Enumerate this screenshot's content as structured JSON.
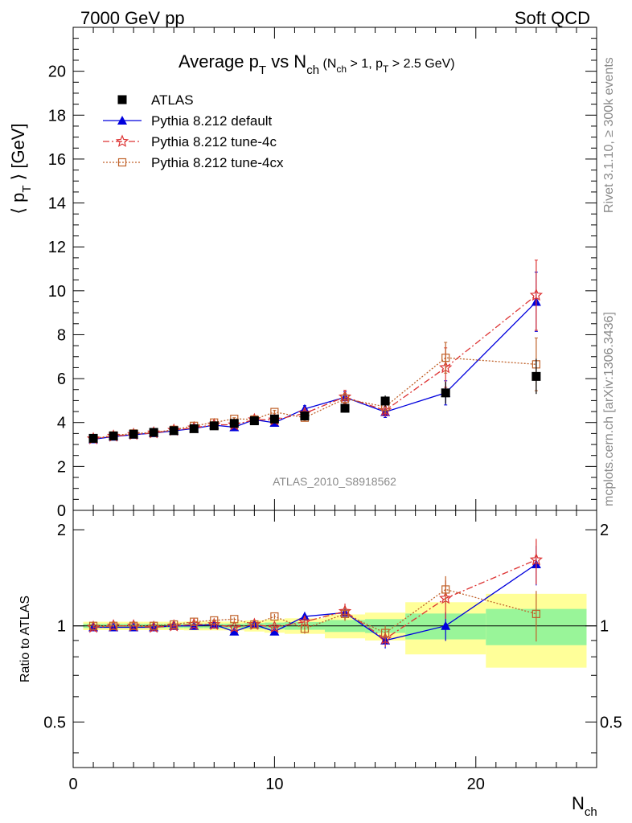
{
  "header": {
    "left": "7000 GeV pp",
    "right": "Soft QCD"
  },
  "title": {
    "main": "Average p",
    "main_sub": "T",
    "vs": " vs N",
    "vs_sub": "ch",
    "cond1": " (N",
    "cond1_sub": "ch",
    "cond2": " > 1, p",
    "cond2_sub": "T",
    "cond3": " > 2.5 GeV)"
  },
  "ylabel_top": {
    "prefix": "⟨ p",
    "sub": "T",
    "suffix": " ⟩ [GeV]"
  },
  "ylabel_bottom": "Ratio to ATLAS",
  "xlabel": {
    "main": "N",
    "sub": "ch"
  },
  "side_text": {
    "rivet": "Rivet 3.1.10, ≥ 300k events",
    "mcplots": "mcplots.cern.ch [arXiv:1306.3436]"
  },
  "watermark": "ATLAS_2010_S8918562",
  "colors": {
    "data": "#000000",
    "default": "#0000dd",
    "tune4c": "#dd3333",
    "tune4cx": "#c0622a",
    "band_green": "#99f599",
    "band_yellow": "#ffff99"
  },
  "chart_data": {
    "type": "line",
    "x_range": [
      0,
      26
    ],
    "x_ticks": [
      0,
      10,
      20
    ],
    "top_panel": {
      "ylim": [
        0,
        22
      ],
      "y_ticks": [
        0,
        2,
        4,
        6,
        8,
        10,
        12,
        14,
        16,
        18,
        20
      ]
    },
    "ratio_panel": {
      "scale": "log",
      "ylim": [
        0.36,
        2.3
      ],
      "y_ticks": [
        0.5,
        1,
        2
      ],
      "y_tick_labels": [
        "0.5",
        "1",
        "2"
      ]
    },
    "x": [
      1,
      2,
      3,
      4,
      5,
      6,
      7,
      8,
      9,
      10,
      11.5,
      13.5,
      15.5,
      18.5,
      23
    ],
    "x_bins": [
      [
        0.5,
        1.5
      ],
      [
        1.5,
        2.5
      ],
      [
        2.5,
        3.5
      ],
      [
        3.5,
        4.5
      ],
      [
        4.5,
        5.5
      ],
      [
        5.5,
        6.5
      ],
      [
        6.5,
        7.5
      ],
      [
        7.5,
        8.5
      ],
      [
        8.5,
        9.5
      ],
      [
        9.5,
        10.5
      ],
      [
        10.5,
        12.5
      ],
      [
        12.5,
        14.5
      ],
      [
        14.5,
        16.5
      ],
      [
        16.5,
        20.5
      ],
      [
        20.5,
        25.5
      ]
    ],
    "legend": [
      "ATLAS",
      "Pythia 8.212 default",
      "Pythia 8.212 tune-4c",
      "Pythia 8.212 tune-4cx"
    ],
    "legend_position": "top-left",
    "series": [
      {
        "name": "ATLAS",
        "marker": "square",
        "values": [
          3.28,
          3.39,
          3.47,
          3.55,
          3.63,
          3.72,
          3.85,
          3.96,
          4.08,
          4.16,
          4.3,
          4.65,
          4.98,
          5.35,
          6.1
        ],
        "errors": [
          0.05,
          0.05,
          0.05,
          0.05,
          0.05,
          0.06,
          0.06,
          0.06,
          0.08,
          0.1,
          0.12,
          0.2,
          0.25,
          0.5,
          0.8
        ]
      },
      {
        "name": "Pythia 8.212 default",
        "marker": "triangle",
        "style": "solid",
        "values": [
          3.24,
          3.36,
          3.45,
          3.52,
          3.62,
          3.73,
          3.88,
          3.79,
          4.13,
          3.99,
          4.62,
          5.15,
          4.48,
          5.35,
          9.5
        ],
        "errors": [
          0.03,
          0.03,
          0.03,
          0.03,
          0.04,
          0.04,
          0.05,
          0.05,
          0.06,
          0.08,
          0.15,
          0.25,
          0.25,
          0.55,
          1.35
        ],
        "ratio": [
          0.99,
          0.99,
          0.99,
          0.99,
          1.0,
          1.0,
          1.01,
          0.96,
          1.01,
          0.96,
          1.07,
          1.1,
          0.9,
          1.0,
          1.56
        ]
      },
      {
        "name": "Pythia 8.212 tune-4c",
        "marker": "star",
        "style": "dash-dot",
        "values": [
          3.26,
          3.38,
          3.46,
          3.53,
          3.65,
          3.76,
          3.9,
          3.9,
          4.13,
          4.12,
          4.42,
          5.17,
          4.55,
          6.5,
          9.8
        ],
        "errors": [
          0.03,
          0.03,
          0.03,
          0.03,
          0.04,
          0.04,
          0.05,
          0.05,
          0.06,
          0.08,
          0.15,
          0.3,
          0.25,
          0.9,
          1.6
        ],
        "ratio": [
          0.99,
          1.0,
          1.0,
          0.99,
          1.0,
          1.01,
          1.01,
          0.99,
          1.01,
          0.99,
          1.03,
          1.11,
          0.91,
          1.22,
          1.61
        ]
      },
      {
        "name": "Pythia 8.212 tune-4cx",
        "marker": "open-square",
        "style": "dotted",
        "values": [
          3.27,
          3.41,
          3.5,
          3.55,
          3.67,
          3.85,
          4.0,
          4.17,
          4.14,
          4.48,
          4.22,
          5.08,
          4.72,
          6.95,
          6.65
        ],
        "errors": [
          0.03,
          0.03,
          0.03,
          0.03,
          0.04,
          0.04,
          0.05,
          0.05,
          0.06,
          0.08,
          0.15,
          0.25,
          0.25,
          0.7,
          1.2
        ],
        "ratio": [
          1.0,
          1.0,
          1.0,
          1.0,
          1.01,
          1.03,
          1.04,
          1.05,
          1.01,
          1.07,
          0.98,
          1.09,
          0.95,
          1.3,
          1.09
        ]
      }
    ],
    "data_band": {
      "green_rel": [
        0.015,
        0.015,
        0.015,
        0.015,
        0.015,
        0.016,
        0.016,
        0.016,
        0.02,
        0.024,
        0.028,
        0.043,
        0.05,
        0.093,
        0.13
      ],
      "yellow_rel": [
        0.03,
        0.03,
        0.03,
        0.03,
        0.03,
        0.032,
        0.032,
        0.032,
        0.04,
        0.048,
        0.056,
        0.086,
        0.1,
        0.186,
        0.26
      ]
    }
  }
}
